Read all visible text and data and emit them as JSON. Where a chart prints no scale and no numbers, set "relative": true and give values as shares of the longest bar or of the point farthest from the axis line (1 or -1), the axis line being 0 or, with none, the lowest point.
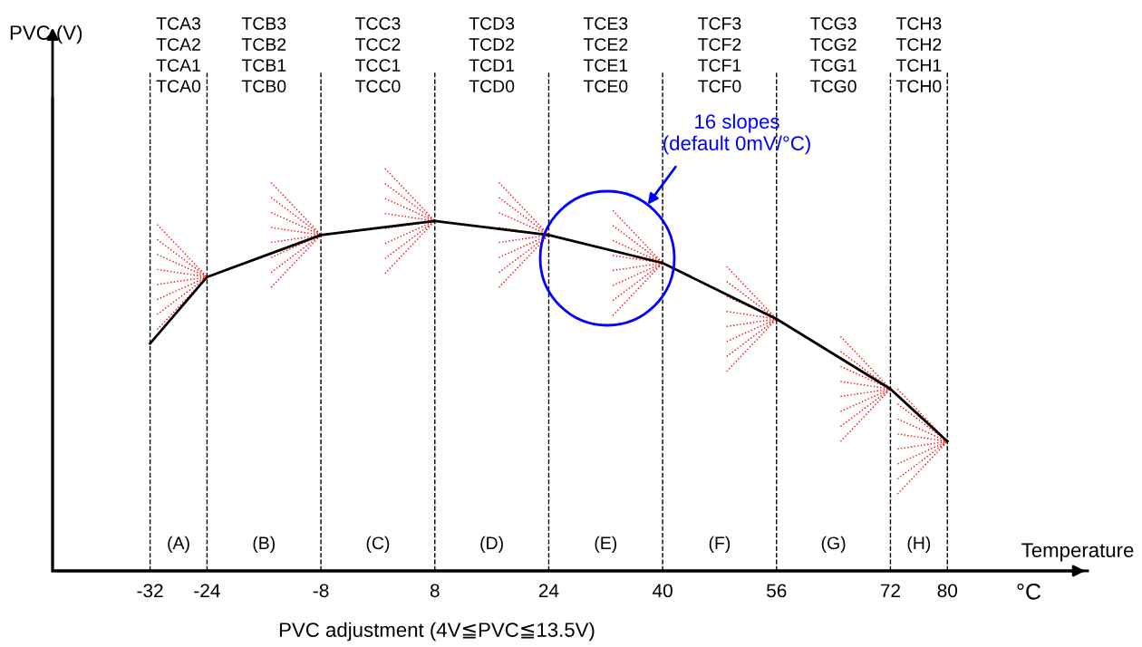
{
  "chart_data": {
    "type": "line",
    "relative": true,
    "xlabel": "Temperature",
    "x": [
      -32,
      -24,
      -8,
      8,
      24,
      40,
      56,
      72,
      80
    ],
    "series": [
      {
        "color": "#000000",
        "values": [
          0.65,
          0.84,
          0.96,
          1,
          0.96,
          0.88,
          0.72,
          0.52,
          0.37
        ]
      }
    ],
    "xlim": [
      -45.7,
      99.7
    ],
    "xticks": [
      -32,
      -24,
      -8,
      8,
      24,
      40,
      56,
      72,
      80
    ],
    "ref_lines": [
      {
        "axis": "x",
        "value": -32,
        "line_style": "dashed",
        "color": "#000000"
      },
      {
        "axis": "x",
        "value": -24,
        "line_style": "dashed",
        "color": "#000000"
      },
      {
        "axis": "x",
        "value": -8,
        "line_style": "dashed",
        "color": "#000000"
      },
      {
        "axis": "x",
        "value": 8,
        "line_style": "dashed",
        "color": "#000000"
      },
      {
        "axis": "x",
        "value": 24,
        "line_style": "dashed",
        "color": "#000000"
      },
      {
        "axis": "x",
        "value": 40,
        "line_style": "dashed",
        "color": "#000000"
      },
      {
        "axis": "x",
        "value": 56,
        "line_style": "dashed",
        "color": "#000000"
      },
      {
        "axis": "x",
        "value": 72,
        "line_style": "dashed",
        "color": "#000000"
      },
      {
        "axis": "x",
        "value": 80,
        "line_style": "dashed",
        "color": "#000000"
      }
    ],
    "annotations": [
      "PVC adjustment (4V≦PVC≦13.5V)",
      "°C",
      "16 slopes\n(default 0mV/°C)",
      "TCA3\nTCA2\nTCA1\nTCA0",
      "TCB3\nTCB2\nTCB1\nTCB0",
      "TCC3\nTCC2\nTCC1\nTCC0",
      "TCD3\nTCD2\nTCD1\nTCD0",
      "TCE3\nTCE2\nTCE1\nTCE0",
      "TCF3\nTCF2\nTCF1\nTCF0",
      "TCG3\nTCG2\nTCG1\nTCG0",
      "TCH3\nTCH2\nTCH1\nTCH0",
      "(A)",
      "(B)",
      "(C)",
      "(D)",
      "(E)",
      "(F)",
      "(G)",
      "(H)",
      "PVC (V)"
    ],
    "grid": false,
    "marker": "none",
    "line_style": "solid"
  }
}
